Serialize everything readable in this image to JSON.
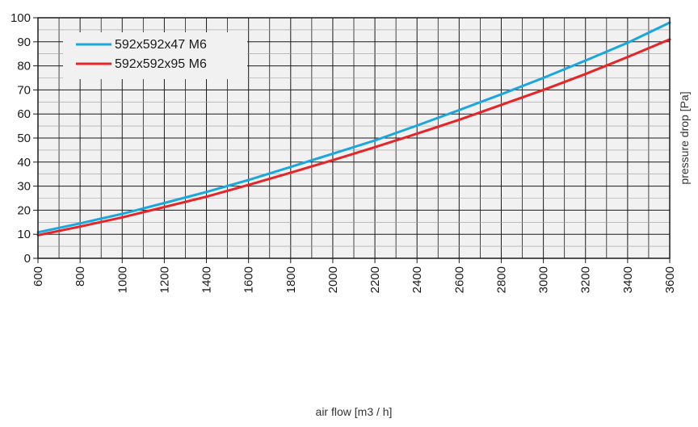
{
  "chart_data": {
    "type": "line",
    "title": "",
    "xlabel": "air flow [m3 / h]",
    "ylabel": "pressure drop [Pa]",
    "xlim": [
      600,
      3600
    ],
    "ylim": [
      0,
      100
    ],
    "x_ticks": [
      600,
      800,
      1000,
      1200,
      1400,
      1600,
      1800,
      2000,
      2200,
      2400,
      2600,
      2800,
      3000,
      3200,
      3400,
      3600
    ],
    "y_ticks": [
      0,
      10,
      20,
      30,
      40,
      50,
      60,
      70,
      80,
      90,
      100
    ],
    "grid": true,
    "legend_position": "top-left",
    "x": [
      600,
      800,
      1000,
      1200,
      1400,
      1600,
      1800,
      2000,
      2200,
      2400,
      2600,
      2800,
      3000,
      3200,
      3400,
      3600
    ],
    "series": [
      {
        "name": "592x592x47 M6",
        "color": "#1aa7e0",
        "values": [
          10.8,
          14.5,
          18.5,
          23,
          27.6,
          32.6,
          38,
          43.5,
          49,
          55.2,
          61.6,
          68.2,
          75,
          82.2,
          89.6,
          98
        ]
      },
      {
        "name": "592x592x95 M6",
        "color": "#e52528",
        "values": [
          9.6,
          13.2,
          17,
          21.3,
          25.6,
          30.5,
          35.6,
          40.8,
          46.2,
          51.8,
          57.6,
          63.8,
          70,
          76.6,
          83.7,
          91
        ]
      }
    ]
  }
}
